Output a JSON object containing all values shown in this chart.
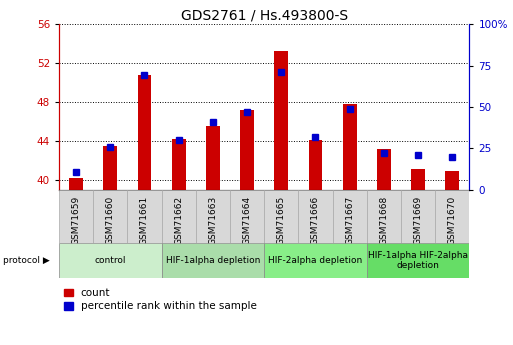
{
  "title": "GDS2761 / Hs.493800-S",
  "samples": [
    "GSM71659",
    "GSM71660",
    "GSM71661",
    "GSM71662",
    "GSM71663",
    "GSM71664",
    "GSM71665",
    "GSM71666",
    "GSM71667",
    "GSM71668",
    "GSM71669",
    "GSM71670"
  ],
  "count_values": [
    40.2,
    43.5,
    50.8,
    44.2,
    45.5,
    47.2,
    53.2,
    44.1,
    47.8,
    43.2,
    41.1,
    40.9
  ],
  "percentile_values": [
    11,
    26,
    69,
    30,
    41,
    47,
    71,
    32,
    49,
    22,
    21,
    20
  ],
  "ylim_left": [
    39,
    56
  ],
  "ylim_right": [
    0,
    100
  ],
  "yticks_left": [
    40,
    44,
    48,
    52,
    56
  ],
  "yticks_right": [
    0,
    25,
    50,
    75,
    100
  ],
  "bar_color": "#cc0000",
  "marker_color": "#0000cc",
  "grid_color": "#000000",
  "bg_color": "#ffffff",
  "protocol_groups": [
    {
      "label": "control",
      "start": 0,
      "end": 2,
      "color": "#cceecc"
    },
    {
      "label": "HIF-1alpha depletion",
      "start": 3,
      "end": 5,
      "color": "#aaddaa"
    },
    {
      "label": "HIF-2alpha depletion",
      "start": 6,
      "end": 8,
      "color": "#88ee88"
    },
    {
      "label": "HIF-1alpha HIF-2alpha\ndepletion",
      "start": 9,
      "end": 11,
      "color": "#66dd66"
    }
  ],
  "left_axis_color": "#cc0000",
  "right_axis_color": "#0000cc",
  "bar_width": 0.4,
  "marker_size": 5,
  "title_fontsize": 10,
  "tick_fontsize": 7.5,
  "sample_fontsize": 6.5,
  "proto_fontsize": 6.5,
  "legend_fontsize": 7.5,
  "bar_bottom": 39
}
